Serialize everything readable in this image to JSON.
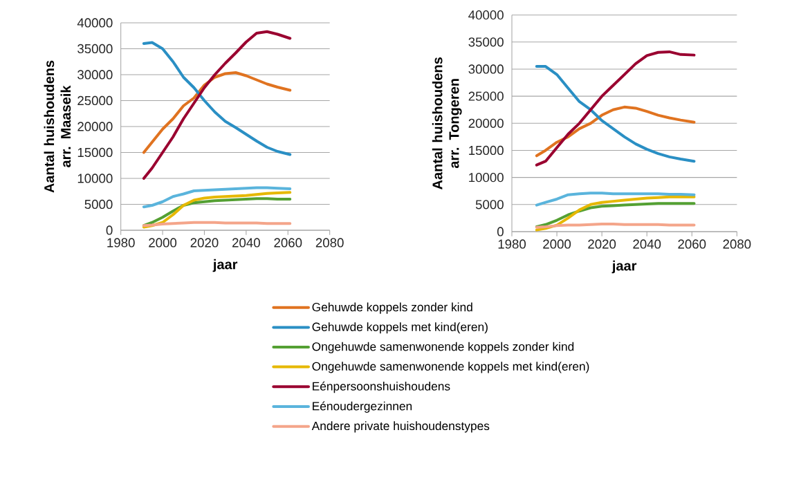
{
  "chart_data": [
    {
      "type": "line",
      "xlabel": "jaar",
      "ylabel": "Aantal huishoudens arr. Maaseik",
      "xlim": [
        1980,
        2080
      ],
      "xticks": [
        1980,
        2000,
        2020,
        2040,
        2060,
        2080
      ],
      "ylim": [
        0,
        40000
      ],
      "yticks": [
        0,
        5000,
        10000,
        15000,
        20000,
        25000,
        30000,
        35000,
        40000
      ],
      "grid": "y",
      "legend": "bottom",
      "marker": "none",
      "line_style": "solid",
      "x": [
        1991,
        1995,
        2000,
        2005,
        2010,
        2015,
        2020,
        2025,
        2030,
        2035,
        2040,
        2045,
        2050,
        2055,
        2061
      ],
      "series": [
        {
          "name": "Gehuwde koppels zonder kind",
          "color": "#e07320",
          "values": [
            15000,
            17000,
            19500,
            21500,
            24000,
            25500,
            28000,
            29500,
            30200,
            30400,
            29800,
            29000,
            28200,
            27600,
            27000
          ]
        },
        {
          "name": "Gehuwde koppels met kind(eren)",
          "color": "#2a8fc4",
          "values": [
            36000,
            36200,
            35000,
            32500,
            29500,
            27500,
            25000,
            22800,
            21000,
            19800,
            18500,
            17200,
            16000,
            15200,
            14600
          ]
        },
        {
          "name": "Ongehuwde samenwonende koppels zonder kind",
          "color": "#54a033",
          "values": [
            900,
            1500,
            2500,
            3700,
            4800,
            5300,
            5500,
            5700,
            5800,
            5900,
            6000,
            6100,
            6100,
            6000,
            6000
          ]
        },
        {
          "name": "Ongehuwde samenwonende koppels met kind(eren)",
          "color": "#e6b800",
          "values": [
            600,
            900,
            1500,
            3000,
            4800,
            5800,
            6200,
            6400,
            6500,
            6600,
            6700,
            6900,
            7100,
            7200,
            7300
          ]
        },
        {
          "name": "Eénpersoonshuishoudens",
          "color": "#9a0030",
          "values": [
            10000,
            12000,
            15000,
            18000,
            21500,
            24500,
            27500,
            30000,
            32200,
            34200,
            36300,
            38000,
            38300,
            37800,
            37000
          ]
        },
        {
          "name": "Eénoudergezinnen",
          "color": "#5ab4dc",
          "values": [
            4500,
            4800,
            5500,
            6500,
            7000,
            7600,
            7700,
            7800,
            7900,
            8000,
            8100,
            8200,
            8200,
            8100,
            8000
          ]
        },
        {
          "name": "Andere private huishoudenstypes",
          "color": "#f4a58a",
          "values": [
            900,
            1000,
            1200,
            1300,
            1400,
            1500,
            1500,
            1500,
            1400,
            1400,
            1400,
            1400,
            1300,
            1300,
            1300
          ]
        }
      ]
    },
    {
      "type": "line",
      "xlabel": "jaar",
      "ylabel": "Aantal huishoudens arr. Tongeren",
      "xlim": [
        1980,
        2080
      ],
      "xticks": [
        1980,
        2000,
        2020,
        2040,
        2060,
        2080
      ],
      "ylim": [
        0,
        40000
      ],
      "yticks": [
        0,
        5000,
        10000,
        15000,
        20000,
        25000,
        30000,
        35000,
        40000
      ],
      "grid": "y",
      "marker": "none",
      "line_style": "solid",
      "x": [
        1991,
        1995,
        2000,
        2005,
        2010,
        2015,
        2020,
        2025,
        2030,
        2035,
        2040,
        2045,
        2050,
        2055,
        2061
      ],
      "series": [
        {
          "color": "#e07320",
          "values": [
            14000,
            15000,
            16500,
            17500,
            19000,
            20000,
            21500,
            22500,
            23000,
            22800,
            22200,
            21500,
            21000,
            20600,
            20200
          ]
        },
        {
          "color": "#2a8fc4",
          "values": [
            30500,
            30500,
            29000,
            26500,
            24000,
            22500,
            20500,
            19000,
            17500,
            16200,
            15200,
            14400,
            13800,
            13400,
            13000
          ]
        },
        {
          "color": "#54a033",
          "values": [
            900,
            1300,
            2100,
            3100,
            3800,
            4400,
            4700,
            4800,
            4900,
            5000,
            5100,
            5200,
            5200,
            5200,
            5200
          ]
        },
        {
          "color": "#e6b800",
          "values": [
            300,
            600,
            1200,
            2500,
            4000,
            5000,
            5400,
            5600,
            5800,
            6000,
            6200,
            6300,
            6400,
            6400,
            6400
          ]
        },
        {
          "color": "#9a0030",
          "values": [
            12300,
            13000,
            15500,
            18000,
            20000,
            22500,
            25000,
            27000,
            29000,
            31000,
            32500,
            33100,
            33200,
            32700,
            32600
          ]
        },
        {
          "color": "#5ab4dc",
          "values": [
            4900,
            5400,
            6000,
            6800,
            7000,
            7100,
            7100,
            7000,
            7000,
            7000,
            7000,
            7000,
            6900,
            6900,
            6800
          ]
        },
        {
          "color": "#f4a58a",
          "values": [
            800,
            900,
            1100,
            1200,
            1200,
            1300,
            1400,
            1400,
            1300,
            1300,
            1300,
            1300,
            1200,
            1200,
            1200
          ]
        }
      ]
    }
  ]
}
